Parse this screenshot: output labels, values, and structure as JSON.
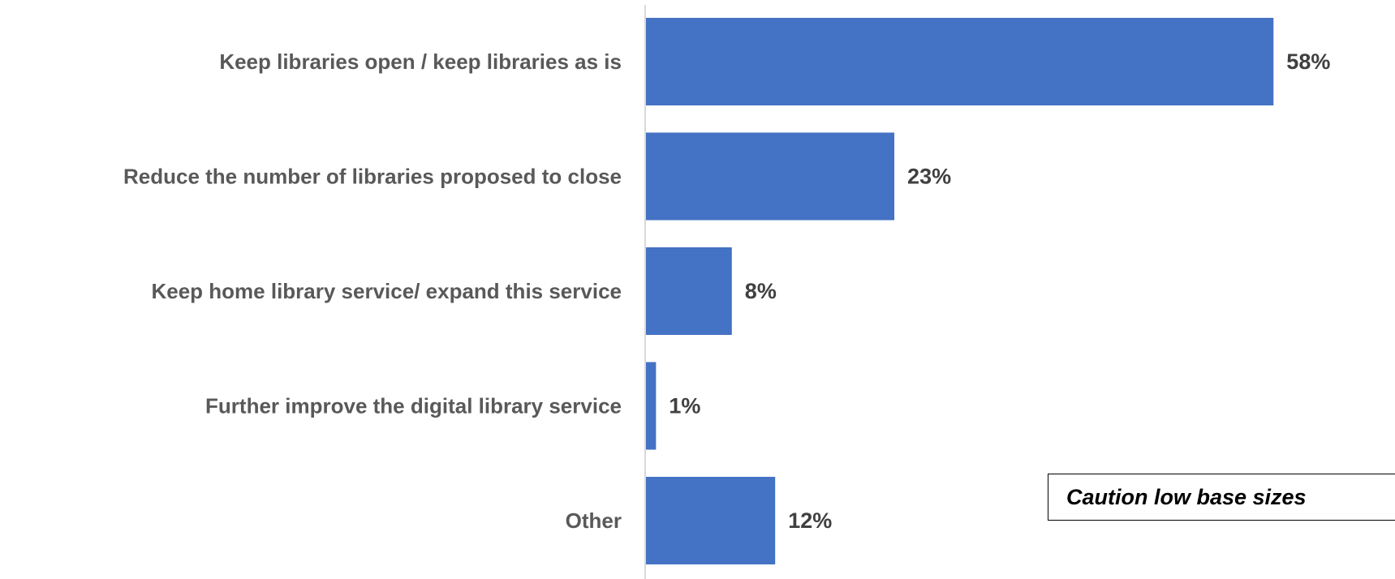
{
  "chart_data": {
    "type": "bar",
    "orientation": "horizontal",
    "categories": [
      "Keep libraries open / keep libraries as is",
      "Reduce the number of libraries proposed to close",
      "Keep home library service/ expand this service",
      "Further improve the digital library service",
      "Other"
    ],
    "values": [
      58,
      23,
      8,
      1,
      12
    ],
    "value_labels": [
      "58%",
      "23%",
      "8%",
      "1%",
      "12%"
    ],
    "unit": "%",
    "xlim": [
      0,
      66
    ],
    "grid": false,
    "legend": "none",
    "bar_color": "#4472C4",
    "axis_color": "#D9D9D9",
    "annotation": "Caution low base sizes"
  }
}
